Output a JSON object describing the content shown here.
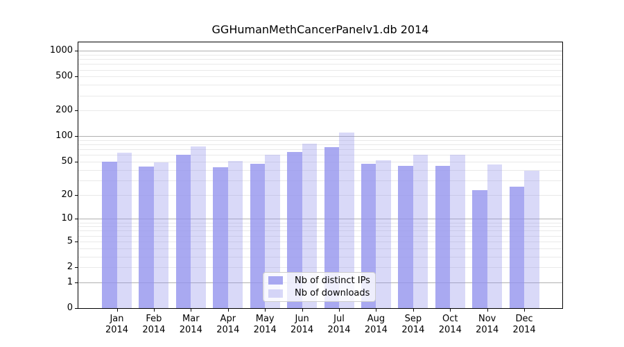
{
  "chart_data": {
    "type": "bar",
    "title": "GGHumanMethCancerPanelv1.db 2014",
    "categories": [
      "Jan 2014",
      "Feb 2014",
      "Mar 2014",
      "Apr 2014",
      "May 2014",
      "Jun 2014",
      "Jul 2014",
      "Aug 2014",
      "Sep 2014",
      "Oct 2014",
      "Nov 2014",
      "Dec 2014"
    ],
    "series": [
      {
        "name": "Nb of distinct IPs",
        "color": "rgba(148,148,237,0.8)",
        "values": [
          50,
          44,
          60,
          43,
          47,
          65,
          74,
          47,
          45,
          45,
          23,
          25
        ]
      },
      {
        "name": "Nb of downloads",
        "color": "rgba(146,146,235,0.35)",
        "values": [
          64,
          49,
          76,
          51,
          60,
          82,
          111,
          52,
          60,
          61,
          46,
          39
        ]
      }
    ],
    "xlabel": "",
    "ylabel": "",
    "yscale": "log10(value+1)",
    "yticks": [
      0,
      1,
      2,
      5,
      10,
      20,
      50,
      100,
      200,
      500,
      1000
    ],
    "ylim": [
      0,
      1258
    ],
    "grid": "horizontal; light minor lines at 2-9 per decade, gray major lines at 1, 10, 100, 1000",
    "legend_position": "lower center"
  },
  "colors": {
    "background": "#ffffff",
    "bar_distinct_ips": "rgba(148,148,237,0.8)",
    "bar_downloads": "rgba(146,146,235,0.35)",
    "major_gridline": "#b0b0b0",
    "minor_gridline": "#e9e9e9",
    "axis": "#000000",
    "legend_border": "#cccccc",
    "legend_background": "rgba(255,255,255,0.8)",
    "text": "#000000"
  }
}
